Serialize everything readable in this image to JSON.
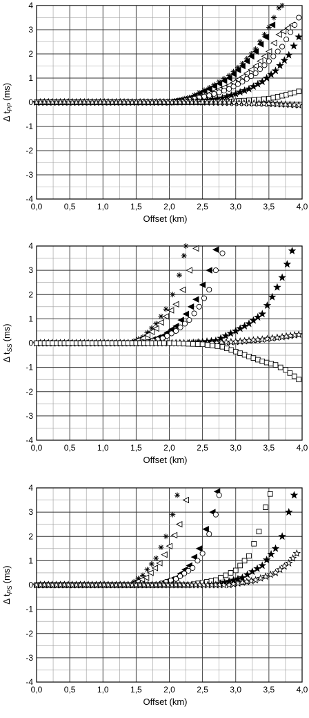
{
  "chart_data": [
    {
      "type": "scatter",
      "xlabel": "Offset (km)",
      "ylabel": "Δ t",
      "ylabel_sub": "PP",
      "ylabel_unit": "(ms)",
      "xlim": [
        0,
        4
      ],
      "ylim": [
        -4,
        4
      ],
      "xticks": [
        "0,0",
        "0,5",
        "1,0",
        "1,5",
        "2,0",
        "2,5",
        "3,0",
        "3,5",
        "4,0"
      ],
      "yticks": [
        "4",
        "3",
        "2",
        "1",
        "0",
        "-1",
        "-2",
        "-3",
        "-4"
      ],
      "grid": true,
      "series": [
        {
          "marker": "asterisk",
          "x": [
            2.0,
            2.3,
            2.6,
            2.9,
            3.1,
            3.3,
            3.5,
            3.65,
            3.7
          ],
          "y": [
            0.0,
            0.2,
            0.6,
            1.1,
            1.6,
            2.2,
            3.1,
            3.9,
            4.0
          ]
        },
        {
          "marker": "triangle-left-filled",
          "x": [
            2.0,
            2.3,
            2.6,
            2.9,
            3.1,
            3.3,
            3.45,
            3.55
          ],
          "y": [
            0.0,
            0.18,
            0.55,
            1.0,
            1.5,
            2.1,
            2.7,
            3.2
          ]
        },
        {
          "marker": "triangle-left-open",
          "x": [
            2.0,
            2.3,
            2.6,
            2.9,
            3.1,
            3.3,
            3.5,
            3.65,
            3.85
          ],
          "y": [
            0.0,
            0.12,
            0.35,
            0.7,
            1.05,
            1.5,
            2.1,
            2.8,
            3.2
          ]
        },
        {
          "marker": "circle-open",
          "x": [
            2.0,
            2.3,
            2.6,
            2.9,
            3.1,
            3.3,
            3.5,
            3.7,
            3.95
          ],
          "y": [
            0.0,
            0.1,
            0.28,
            0.55,
            0.85,
            1.2,
            1.7,
            2.3,
            3.5
          ]
        },
        {
          "marker": "star-filled",
          "x": [
            2.0,
            2.5,
            2.8,
            3.0,
            3.2,
            3.4,
            3.6,
            3.8,
            3.95
          ],
          "y": [
            0.0,
            0.05,
            0.18,
            0.35,
            0.55,
            0.85,
            1.3,
            1.95,
            2.7
          ]
        },
        {
          "marker": "square-open",
          "x": [
            2.5,
            2.9,
            3.2,
            3.5,
            3.7,
            3.95
          ],
          "y": [
            0.0,
            0.03,
            0.08,
            0.15,
            0.27,
            0.45
          ]
        },
        {
          "marker": "star-open",
          "x": [
            2.5,
            2.9,
            3.2,
            3.5,
            3.75,
            3.95
          ],
          "y": [
            0.0,
            -0.02,
            -0.04,
            -0.06,
            -0.09,
            -0.12
          ]
        }
      ]
    },
    {
      "type": "scatter",
      "xlabel": "Offset (km)",
      "ylabel": "Δ t",
      "ylabel_sub": "SS",
      "ylabel_unit": "(ms)",
      "xlim": [
        0,
        4
      ],
      "ylim": [
        -4,
        4
      ],
      "xticks": [
        "0,0",
        "0,5",
        "1,0",
        "1,5",
        "2,0",
        "2,5",
        "3,0",
        "3,5",
        "4,0"
      ],
      "yticks": [
        "4",
        "3",
        "2",
        "1",
        "0",
        "-1",
        "-2",
        "-3",
        "-4"
      ],
      "grid": true,
      "series": [
        {
          "marker": "asterisk",
          "x": [
            1.4,
            1.6,
            1.8,
            1.95,
            2.05,
            2.15,
            2.22,
            2.25
          ],
          "y": [
            0.0,
            0.25,
            0.8,
            1.4,
            2.0,
            2.8,
            3.6,
            4.0
          ]
        },
        {
          "marker": "triangle-left-open",
          "x": [
            1.4,
            1.6,
            1.8,
            1.95,
            2.1,
            2.2,
            2.3,
            2.4
          ],
          "y": [
            0.0,
            0.2,
            0.6,
            1.1,
            1.6,
            2.2,
            3.0,
            3.9
          ]
        },
        {
          "marker": "triangle-left-filled",
          "x": [
            1.6,
            1.9,
            2.1,
            2.25,
            2.4,
            2.5,
            2.6,
            2.7
          ],
          "y": [
            0.0,
            0.3,
            0.7,
            1.2,
            1.8,
            2.4,
            3.0,
            3.85
          ]
        },
        {
          "marker": "circle-open",
          "x": [
            1.6,
            1.9,
            2.1,
            2.3,
            2.45,
            2.6,
            2.7,
            2.8
          ],
          "y": [
            0.0,
            0.2,
            0.5,
            0.95,
            1.5,
            2.2,
            3.0,
            3.7
          ]
        },
        {
          "marker": "star-filled",
          "x": [
            2.3,
            2.7,
            3.0,
            3.2,
            3.4,
            3.55,
            3.7,
            3.85
          ],
          "y": [
            0.0,
            0.1,
            0.5,
            0.8,
            1.2,
            1.9,
            2.7,
            3.8
          ]
        },
        {
          "marker": "star-open",
          "x": [
            2.5,
            3.0,
            3.4,
            3.7,
            3.95
          ],
          "y": [
            0.0,
            0.05,
            0.15,
            0.25,
            0.35
          ]
        },
        {
          "marker": "square-open",
          "x": [
            2.0,
            2.5,
            2.8,
            3.0,
            3.2,
            3.4,
            3.6,
            3.75,
            3.95
          ],
          "y": [
            0.0,
            -0.05,
            -0.15,
            -0.35,
            -0.55,
            -0.75,
            -0.9,
            -1.1,
            -1.5
          ]
        }
      ]
    },
    {
      "type": "scatter",
      "xlabel": "Offset (km)",
      "ylabel": "Δ t",
      "ylabel_sub": "PS",
      "ylabel_unit": "(ms)",
      "xlim": [
        0,
        4
      ],
      "ylim": [
        -4,
        4
      ],
      "xticks": [
        "0,0",
        "0,5",
        "1,0",
        "1,5",
        "2,0",
        "2,5",
        "3,0",
        "3,5",
        "4,0"
      ],
      "yticks": [
        "4",
        "3",
        "2",
        "1",
        "0",
        "-1",
        "-2",
        "-3",
        "-4"
      ],
      "grid": true,
      "series": [
        {
          "marker": "asterisk",
          "x": [
            1.4,
            1.6,
            1.8,
            1.95,
            2.05,
            2.12
          ],
          "y": [
            0.0,
            0.4,
            1.1,
            2.0,
            2.9,
            3.7
          ]
        },
        {
          "marker": "triangle-left-open",
          "x": [
            1.4,
            1.65,
            1.85,
            2.0,
            2.15,
            2.25
          ],
          "y": [
            0.0,
            0.3,
            0.9,
            1.6,
            2.5,
            3.5
          ]
        },
        {
          "marker": "triangle-left-filled",
          "x": [
            1.8,
            2.1,
            2.3,
            2.45,
            2.55,
            2.65,
            2.72
          ],
          "y": [
            0.0,
            0.3,
            0.8,
            1.5,
            2.3,
            3.0,
            3.85
          ]
        },
        {
          "marker": "circle-open",
          "x": [
            1.8,
            2.1,
            2.35,
            2.5,
            2.6,
            2.7,
            2.75
          ],
          "y": [
            0.0,
            0.25,
            0.7,
            1.3,
            2.1,
            2.9,
            3.7
          ]
        },
        {
          "marker": "square-open",
          "x": [
            2.3,
            2.7,
            3.0,
            3.2,
            3.35,
            3.45,
            3.52
          ],
          "y": [
            0.0,
            0.2,
            0.6,
            1.2,
            2.2,
            3.2,
            3.75
          ]
        },
        {
          "marker": "star-filled",
          "x": [
            2.7,
            3.1,
            3.4,
            3.6,
            3.7,
            3.8,
            3.88
          ],
          "y": [
            0.0,
            0.3,
            0.8,
            1.5,
            2.0,
            3.0,
            3.7
          ]
        },
        {
          "marker": "star-open",
          "x": [
            2.9,
            3.3,
            3.6,
            3.8,
            3.92
          ],
          "y": [
            0.0,
            0.2,
            0.5,
            0.9,
            1.3
          ]
        }
      ]
    }
  ]
}
